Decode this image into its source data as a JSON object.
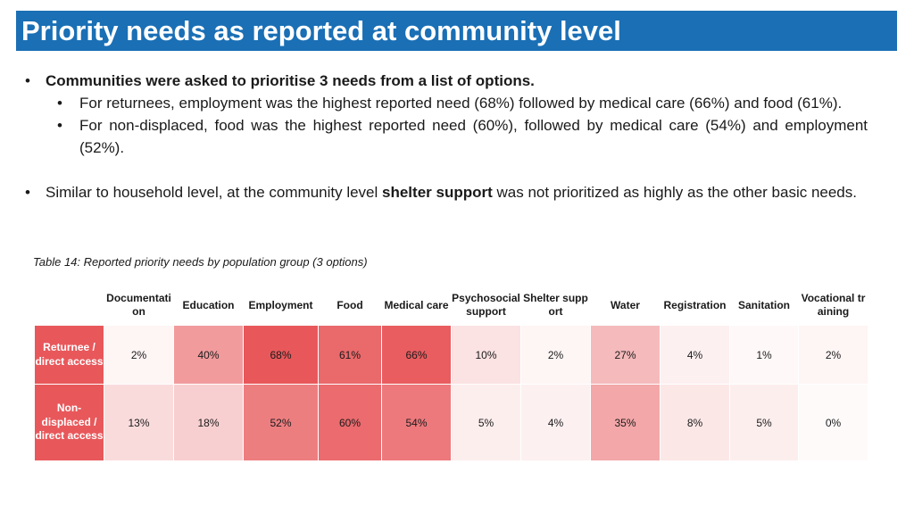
{
  "title": "Priority needs as reported at community level",
  "bullets": {
    "b1": "Communities were asked to prioritise 3 needs from a list of options.",
    "b1_sub1": "For returnees, employment was the highest reported need (68%)  followed by medical care (66%)  and food (61%).",
    "b1_sub2": "For non-displaced, food was the highest reported need (60%), followed by medical care (54%) and employment (52%).",
    "b2_before": "Similar to household level, at the community level ",
    "b2_bold": "shelter support",
    "b2_after": " was not prioritized as highly as the other basic needs."
  },
  "table": {
    "caption": "Table 14: Reported priority needs by population group (3 options)",
    "columns": [
      "Documentation",
      "Education",
      "Employment",
      "Food",
      "Medical care",
      "Psychosocial support",
      "Shelter support",
      "Water",
      "Registration",
      "Sanitation",
      "Vocational training"
    ],
    "rows": [
      {
        "label": "Returnee / direct access",
        "values": [
          "2%",
          "40%",
          "68%",
          "61%",
          "66%",
          "10%",
          "2%",
          "27%",
          "4%",
          "1%",
          "2%"
        ]
      },
      {
        "label": "Non-displaced / direct access",
        "values": [
          "13%",
          "18%",
          "52%",
          "60%",
          "54%",
          "5%",
          "4%",
          "35%",
          "8%",
          "5%",
          "0%"
        ]
      }
    ],
    "colors": {
      "row_header": "#e8585b",
      "heat_max": "#e8585b",
      "heat_min": "#ffffff"
    }
  }
}
